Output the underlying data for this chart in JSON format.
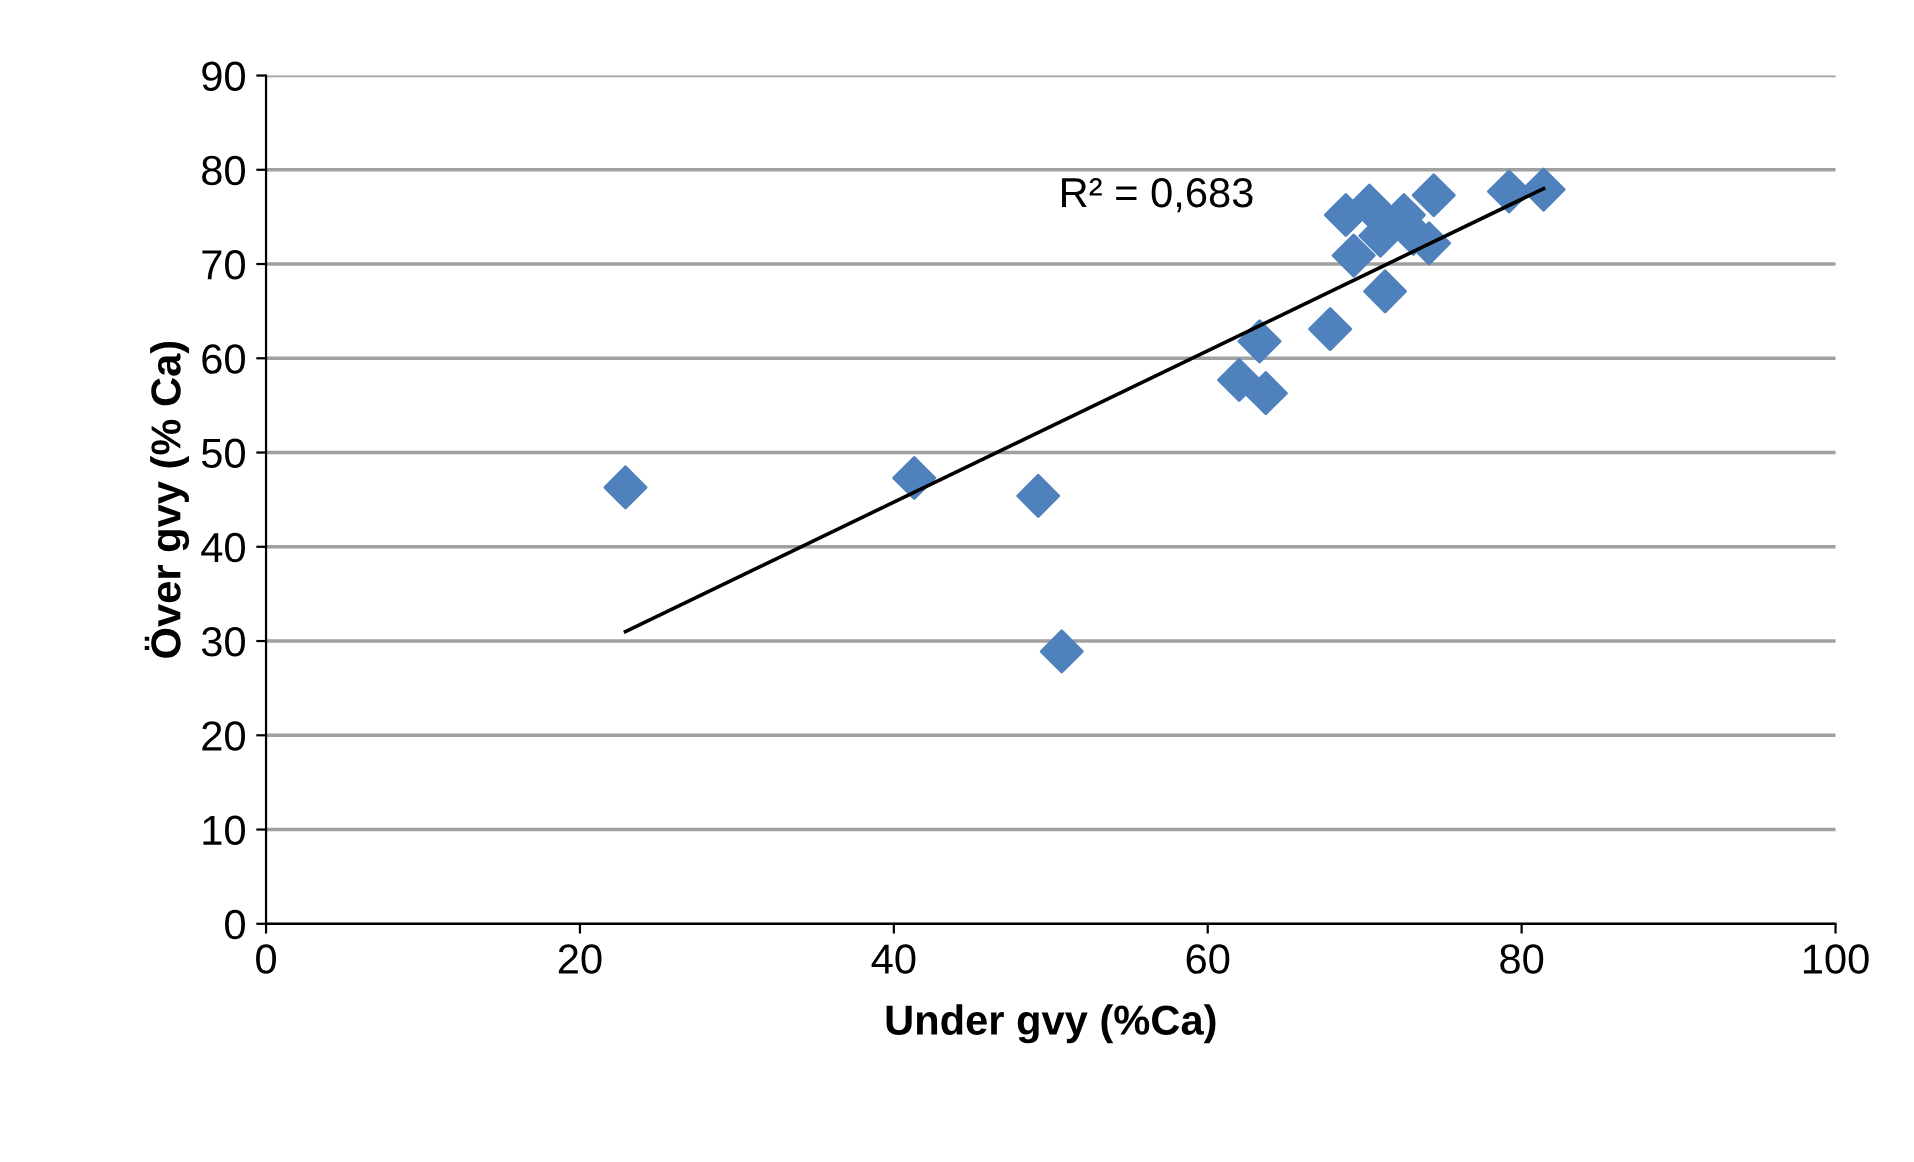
{
  "chart_data": {
    "type": "scatter",
    "xlabel": "Under gvy (%Ca)",
    "ylabel": "Över gvy (% Ca)",
    "grid": "y",
    "legend": false,
    "xlim": [
      0,
      100
    ],
    "xticks": [
      0,
      20,
      40,
      60,
      80,
      100
    ],
    "ylim": [
      0,
      90
    ],
    "yticks": [
      0,
      10,
      20,
      30,
      40,
      50,
      60,
      70,
      80,
      90
    ],
    "annotations": [
      "R² = 0,683"
    ],
    "series": [
      {
        "marker": "diamond",
        "color": "#4f81bd",
        "x": [
          68.8,
          70.3,
          74.4,
          79.2,
          81.4,
          72.5,
          71.0,
          73.1,
          74.1,
          69.3,
          71.3,
          67.8,
          63.3,
          62.0,
          63.7,
          22.9,
          41.3,
          49.2,
          50.7
        ],
        "values": [
          75.2,
          76.2,
          77.3,
          77.7,
          77.9,
          75.2,
          73.0,
          73.2,
          72.2,
          70.9,
          67.1,
          63.1,
          61.8,
          57.7,
          56.3,
          46.3,
          47.3,
          45.4,
          28.9
        ]
      },
      {
        "type": "line",
        "marker": "none",
        "color": "#000000",
        "x": [
          22.9,
          81.4
        ],
        "values": [
          31.0,
          78.0
        ]
      }
    ]
  }
}
